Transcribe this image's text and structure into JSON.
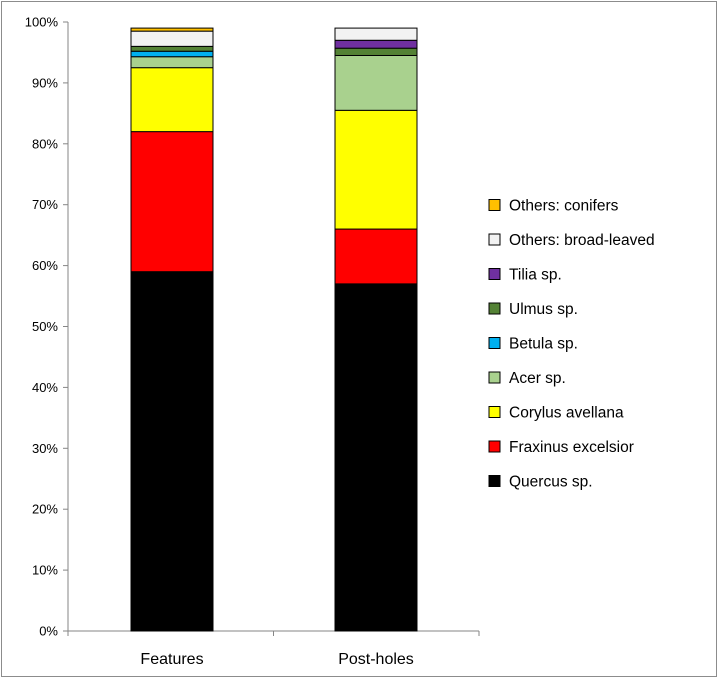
{
  "chart_data": {
    "type": "bar",
    "stacked": true,
    "percent": true,
    "title": "",
    "xlabel": "",
    "ylabel": "",
    "ylim": [
      0,
      100
    ],
    "yticks": [
      "0%",
      "10%",
      "20%",
      "30%",
      "40%",
      "50%",
      "60%",
      "70%",
      "80%",
      "90%",
      "100%"
    ],
    "categories": [
      "Features",
      "Post-holes"
    ],
    "series": [
      {
        "name": "Quercus sp.",
        "color": "#000000",
        "values": [
          59.0,
          57.0
        ]
      },
      {
        "name": "Fraxinus excelsior",
        "color": "#ff0000",
        "values": [
          23.0,
          9.0
        ]
      },
      {
        "name": "Corylus avellana",
        "color": "#ffff00",
        "values": [
          10.5,
          19.5
        ]
      },
      {
        "name": "Acer sp.",
        "color": "#a9d18e",
        "values": [
          1.8,
          9.0
        ]
      },
      {
        "name": "Betula sp.",
        "color": "#00b0f0",
        "values": [
          0.9,
          0.0
        ]
      },
      {
        "name": "Ulmus sp.",
        "color": "#548235",
        "values": [
          0.8,
          1.2
        ]
      },
      {
        "name": "Tilia sp.",
        "color": "#7030a0",
        "values": [
          0.0,
          1.3
        ]
      },
      {
        "name": "Others: broad-leaved",
        "color": "#f2f2f2",
        "values": [
          2.5,
          2.0
        ]
      },
      {
        "name": "Others: conifers",
        "color": "#ffc000",
        "values": [
          0.5,
          0.0
        ]
      }
    ],
    "grid": false,
    "legend_position": "right"
  }
}
